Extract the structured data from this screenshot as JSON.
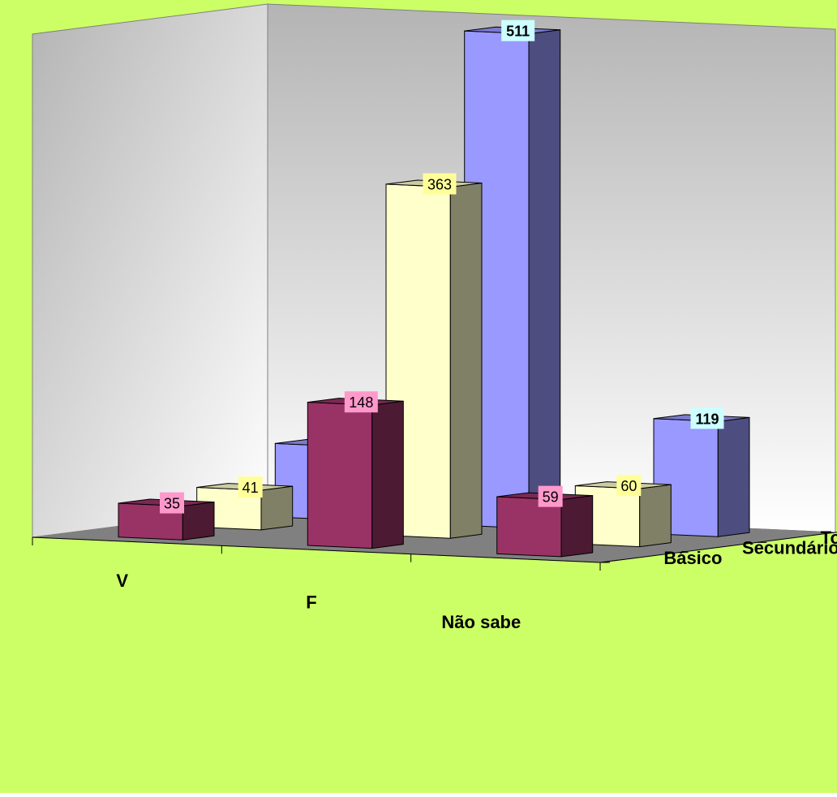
{
  "chart_data": {
    "type": "bar",
    "subtype": "3d-column",
    "categories": [
      "V",
      "F",
      "Não sabe"
    ],
    "series": [
      {
        "name": "Básico",
        "values": [
          35,
          148,
          59
        ],
        "color": "#993366",
        "label_bg": "#FF99CC",
        "label_bold": false
      },
      {
        "name": "Secundário",
        "values": [
          41,
          363,
          60
        ],
        "color": "#FFFFCC",
        "label_bg": "#FFFF99",
        "label_bold": false
      },
      {
        "name": "Total",
        "values": [
          76,
          511,
          119
        ],
        "color": "#9999FF",
        "label_bg": "#CCFFFF",
        "label_bold": true
      }
    ],
    "ylim": [
      0,
      520
    ],
    "grid": false,
    "legend": "none",
    "colors": {
      "background": "#CCFF66",
      "walls": "#C0C0C0",
      "floor": "#808080",
      "axis": "#000000"
    }
  }
}
